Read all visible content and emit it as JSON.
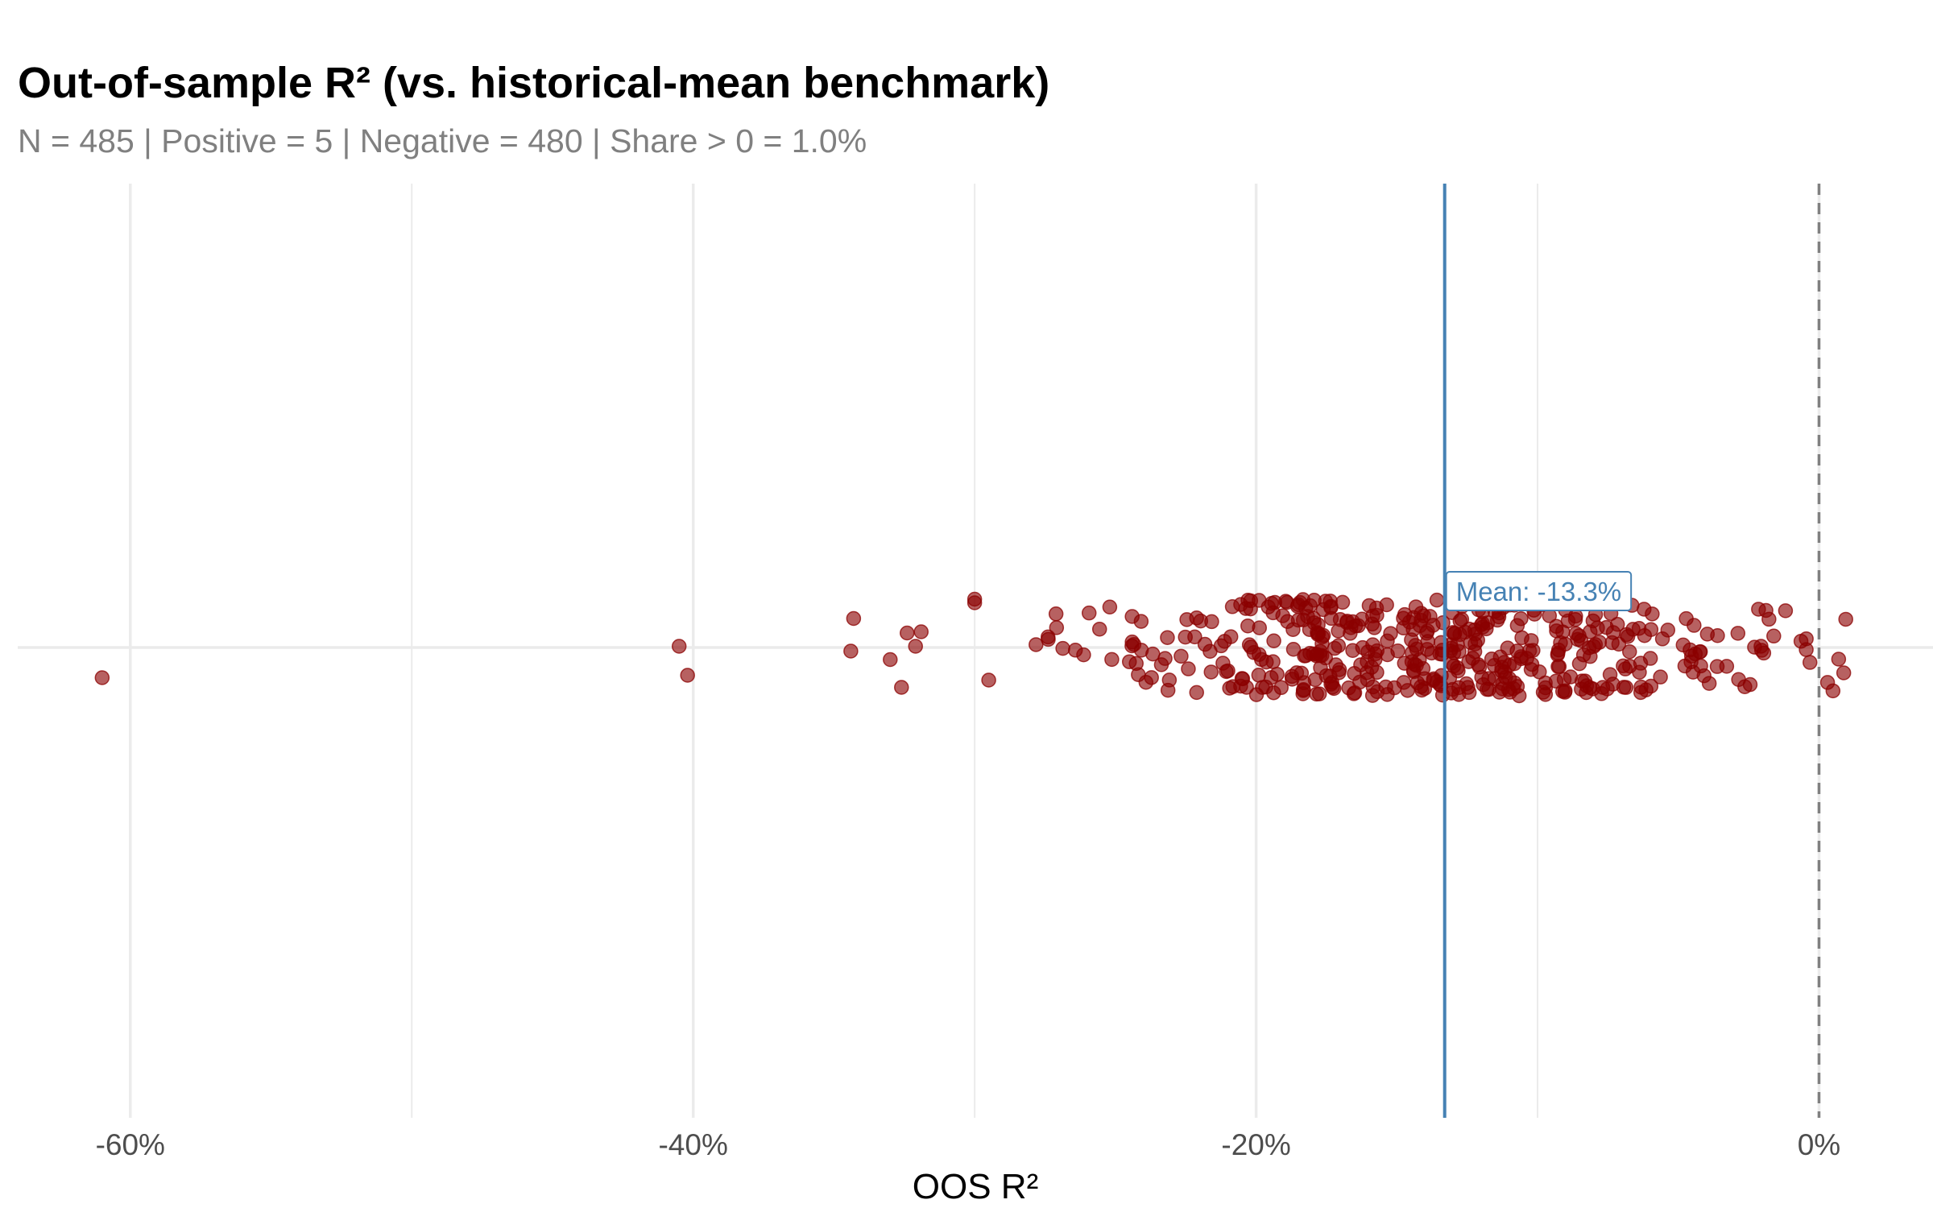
{
  "title": "Out-of-sample R² (vs. historical-mean benchmark)",
  "subtitle": "N = 485 | Positive = 5 | Negative = 480 | Share > 0 = 1.0%",
  "chart_data": {
    "type": "scatter",
    "title": "Out-of-sample R² (vs. historical-mean benchmark)",
    "subtitle": "N = 485 | Positive = 5 | Negative = 480 | Share > 0 = 1.0%",
    "xlabel": "OOS R²",
    "ylabel": "",
    "xlim": [
      -0.64,
      0.0405
    ],
    "x_ticks": [
      {
        "value": -0.6,
        "label": "-60%"
      },
      {
        "value": -0.4,
        "label": "-40%"
      },
      {
        "value": -0.2,
        "label": "-20%"
      },
      {
        "value": 0.0,
        "label": "0%"
      }
    ],
    "x_minor_gridlines": [
      -0.5,
      -0.3,
      -0.1
    ],
    "grid": true,
    "point_color": "#8b0000",
    "mean": {
      "value": -0.133,
      "label": "Mean: -13.3%",
      "color": "#4682b4"
    },
    "zero_reference": {
      "value": 0.0,
      "style": "dashed",
      "color": "#808080"
    },
    "n": 485,
    "jitter_range": [
      -0.4,
      0.4
    ],
    "outliers": [
      {
        "x": -0.61,
        "y": -0.25
      },
      {
        "x": -0.405,
        "y": 0.01
      },
      {
        "x": -0.402,
        "y": -0.23
      },
      {
        "x": -0.343,
        "y": 0.24
      },
      {
        "x": -0.344,
        "y": -0.03
      },
      {
        "x": -0.33,
        "y": -0.1
      },
      {
        "x": -0.324,
        "y": 0.12
      },
      {
        "x": -0.319,
        "y": 0.13
      },
      {
        "x": -0.321,
        "y": 0.01
      },
      {
        "x": -0.326,
        "y": -0.33
      },
      {
        "x": -0.3,
        "y": 0.4
      },
      {
        "x": -0.3,
        "y": 0.37
      },
      {
        "x": -0.295,
        "y": -0.27
      }
    ],
    "bulk_range": [
      -0.28,
      0.01
    ]
  }
}
